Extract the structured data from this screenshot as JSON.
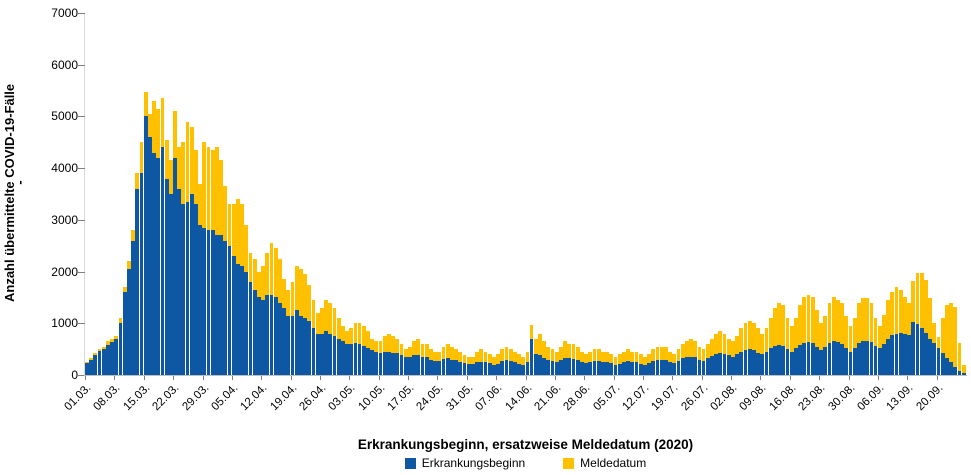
{
  "chart_data": {
    "type": "bar",
    "stacked": true,
    "title": "",
    "xlabel": "Erkrankungsbeginn, ersatzweise Meldedatum (2020)",
    "ylabel": "Anzahl übermittelte COVID-19-Fälle",
    "stray_mark": "-",
    "ylim": [
      0,
      7000
    ],
    "yticks": [
      0,
      1000,
      2000,
      3000,
      4000,
      5000,
      6000,
      7000
    ],
    "grid": false,
    "legend_position": "bottom-center",
    "x_start_date": "2020-03-01",
    "x_end_date": "2020-09-26",
    "x_unit": "day",
    "xtick_labels": [
      "01.03.",
      "08.03.",
      "15.03.",
      "22.03.",
      "29.03.",
      "05.04.",
      "12.04.",
      "19.04.",
      "26.04.",
      "03.05.",
      "10.05.",
      "17.05.",
      "24.05.",
      "31.05.",
      "07.06.",
      "14.06.",
      "21.06.",
      "28.06.",
      "05.07.",
      "12.07.",
      "19.07.",
      "26.07.",
      "02.08.",
      "09.08.",
      "16.08.",
      "23.08.",
      "30.08.",
      "06.09.",
      "13.09.",
      "20.09."
    ],
    "xtick_day_indices": [
      0,
      7,
      14,
      21,
      28,
      35,
      42,
      49,
      56,
      63,
      70,
      77,
      84,
      91,
      98,
      105,
      112,
      119,
      126,
      133,
      140,
      147,
      154,
      161,
      168,
      175,
      182,
      189,
      196,
      203
    ],
    "series": [
      {
        "name": "Erkrankungsbeginn",
        "color": "#0e57a3",
        "values": [
          230,
          300,
          380,
          460,
          500,
          590,
          640,
          690,
          1000,
          1600,
          2050,
          2600,
          3600,
          3900,
          5000,
          4600,
          4300,
          4200,
          4400,
          3800,
          3500,
          4200,
          3600,
          3300,
          3350,
          3500,
          3300,
          2900,
          2850,
          2800,
          2800,
          2700,
          2700,
          2600,
          2500,
          2300,
          2150,
          2100,
          2000,
          1800,
          1650,
          1500,
          1450,
          1550,
          1550,
          1500,
          1400,
          1300,
          1150,
          1150,
          1250,
          1150,
          1100,
          1050,
          900,
          800,
          800,
          850,
          800,
          750,
          700,
          650,
          600,
          600,
          620,
          600,
          570,
          520,
          480,
          450,
          430,
          450,
          450,
          430,
          420,
          380,
          340,
          350,
          380,
          390,
          350,
          340,
          300,
          280,
          280,
          310,
          320,
          300,
          290,
          260,
          230,
          220,
          210,
          250,
          260,
          250,
          230,
          200,
          220,
          270,
          290,
          270,
          250,
          220,
          200,
          260,
          700,
          400,
          380,
          330,
          300,
          280,
          250,
          300,
          330,
          320,
          310,
          300,
          260,
          230,
          260,
          280,
          280,
          260,
          250,
          230,
          200,
          220,
          250,
          270,
          260,
          250,
          220,
          200,
          230,
          270,
          290,
          300,
          290,
          250,
          230,
          270,
          320,
          340,
          350,
          340,
          300,
          280,
          330,
          370,
          400,
          420,
          400,
          380,
          350,
          400,
          450,
          480,
          500,
          480,
          430,
          400,
          450,
          520,
          560,
          580,
          560,
          500,
          450,
          520,
          580,
          620,
          640,
          620,
          550,
          480,
          550,
          620,
          650,
          630,
          600,
          520,
          450,
          530,
          620,
          650,
          660,
          640,
          560,
          520,
          600,
          700,
          770,
          800,
          820,
          800,
          780,
          1020,
          980,
          900,
          820,
          700,
          620,
          520,
          430,
          330,
          250,
          150,
          80,
          30
        ]
      },
      {
        "name": "Meldedatum",
        "color": "#ffc000",
        "values": [
          20,
          30,
          40,
          40,
          50,
          60,
          60,
          60,
          100,
          100,
          150,
          200,
          300,
          600,
          480,
          450,
          1000,
          950,
          950,
          750,
          650,
          900,
          800,
          1200,
          1550,
          1300,
          1050,
          800,
          1650,
          1600,
          1550,
          1700,
          1450,
          1050,
          800,
          1000,
          1250,
          1200,
          900,
          550,
          600,
          500,
          650,
          800,
          1000,
          950,
          850,
          550,
          500,
          650,
          850,
          900,
          850,
          700,
          550,
          400,
          500,
          600,
          600,
          550,
          400,
          300,
          250,
          300,
          380,
          400,
          380,
          330,
          220,
          200,
          220,
          300,
          350,
          320,
          280,
          220,
          160,
          200,
          270,
          310,
          250,
          260,
          200,
          170,
          170,
          240,
          280,
          250,
          210,
          190,
          150,
          130,
          140,
          200,
          240,
          200,
          170,
          150,
          180,
          230,
          260,
          230,
          200,
          180,
          150,
          190,
          260,
          300,
          420,
          320,
          250,
          230,
          200,
          250,
          320,
          280,
          290,
          250,
          190,
          170,
          190,
          220,
          220,
          190,
          200,
          170,
          150,
          180,
          200,
          230,
          190,
          200,
          180,
          150,
          170,
          230,
          260,
          250,
          260,
          200,
          170,
          230,
          280,
          310,
          350,
          310,
          250,
          220,
          270,
          330,
          400,
          430,
          400,
          320,
          300,
          350,
          450,
          520,
          550,
          520,
          470,
          400,
          450,
          580,
          740,
          820,
          790,
          600,
          500,
          580,
          770,
          880,
          910,
          880,
          700,
          520,
          600,
          780,
          850,
          820,
          800,
          630,
          500,
          570,
          780,
          830,
          820,
          760,
          540,
          430,
          560,
          750,
          830,
          900,
          830,
          700,
          620,
          800,
          1000,
          1070,
          1020,
          780,
          380,
          210,
          670,
          1020,
          1150,
          1170,
          540,
          160
        ]
      }
    ]
  }
}
